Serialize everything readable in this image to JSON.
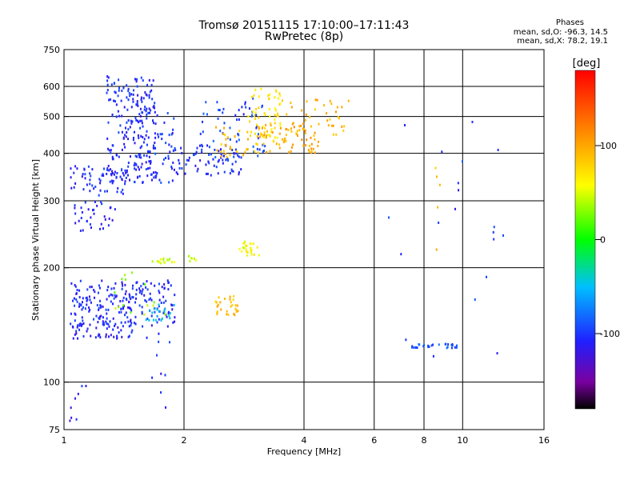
{
  "header": {
    "title": "Tromsø 20151115 17:10:00–17:11:43",
    "subtitle": "RwPretec (8p)",
    "phase_title": "Phases",
    "phase_line1": "mean, sd,O: -96.3, 14.5",
    "phase_line2": "mean, sd,X:  78.2, 19.1"
  },
  "colorbar": {
    "unit_label": "[deg]",
    "ticks": [
      {
        "label": "100",
        "value": 100
      },
      {
        "label": "0",
        "value": 0
      },
      {
        "label": "-100",
        "value": -100
      }
    ],
    "range": [
      -180,
      180
    ]
  },
  "chart_data": {
    "type": "scatter",
    "xlabel": "Frequency [MHz]",
    "ylabel": "Stationary phase Virtual Height [km]",
    "xscale": "log",
    "yscale": "log",
    "xlim": [
      1,
      16
    ],
    "ylim": [
      75,
      750
    ],
    "x_ticks": [
      {
        "label": "1",
        "value": 1
      },
      {
        "label": "2",
        "value": 2
      },
      {
        "label": "4",
        "value": 4
      },
      {
        "label": "6",
        "value": 6
      },
      {
        "label": "8",
        "value": 8
      },
      {
        "label": "10",
        "value": 10
      },
      {
        "label": "16",
        "value": 16
      }
    ],
    "x_grid": [
      2,
      4,
      6,
      8,
      10
    ],
    "y_ticks": [
      {
        "label": "75",
        "value": 75
      },
      {
        "label": "100",
        "value": 100
      },
      {
        "label": "200",
        "value": 200
      },
      {
        "label": "300",
        "value": 300
      },
      {
        "label": "400",
        "value": 400
      },
      {
        "label": "500",
        "value": 500
      },
      {
        "label": "600",
        "value": 600
      },
      {
        "label": "750",
        "value": 750
      }
    ],
    "y_grid": [
      100,
      200,
      300,
      400,
      500,
      600
    ],
    "grid": true,
    "color_variable": "phase [deg]",
    "clusters": [
      {
        "x": [
          1.04,
          1.45
        ],
        "y": [
          310,
          370
        ],
        "phase": -105,
        "n": 60
      },
      {
        "x": [
          1.28,
          1.7
        ],
        "y": [
          340,
          640
        ],
        "phase": -105,
        "n": 200
      },
      {
        "x": [
          1.5,
          1.9
        ],
        "y": [
          330,
          520
        ],
        "phase": -100,
        "n": 60
      },
      {
        "x": [
          1.85,
          2.8
        ],
        "y": [
          350,
          420
        ],
        "phase": -105,
        "n": 80
      },
      {
        "x": [
          2.2,
          3.2
        ],
        "y": [
          390,
          560
        ],
        "phase": -95,
        "n": 60
      },
      {
        "x": [
          2.4,
          3.2
        ],
        "y": [
          390,
          470
        ],
        "phase": 90,
        "n": 40
      },
      {
        "x": [
          2.9,
          3.5
        ],
        "y": [
          420,
          600
        ],
        "phase": 70,
        "n": 60
      },
      {
        "x": [
          3.1,
          4.4
        ],
        "y": [
          400,
          480
        ],
        "phase": 100,
        "n": 60
      },
      {
        "x": [
          3.5,
          5.2
        ],
        "y": [
          440,
          560
        ],
        "phase": 95,
        "n": 40
      },
      {
        "x": [
          1.02,
          1.5
        ],
        "y": [
          130,
          145
        ],
        "phase": -110,
        "n": 50
      },
      {
        "x": [
          1.04,
          1.9
        ],
        "y": [
          140,
          185
        ],
        "phase": -105,
        "n": 220
      },
      {
        "x": [
          1.3,
          1.8
        ],
        "y": [
          150,
          200
        ],
        "phase": 30,
        "n": 15
      },
      {
        "x": [
          1.6,
          1.9
        ],
        "y": [
          145,
          160
        ],
        "phase": -50,
        "n": 20
      },
      {
        "x": [
          1.06,
          1.35
        ],
        "y": [
          250,
          300
        ],
        "phase": -110,
        "n": 35
      },
      {
        "x": [
          1.65,
          1.9
        ],
        "y": [
          205,
          212
        ],
        "phase": 45,
        "n": 15
      },
      {
        "x": [
          2.4,
          2.75
        ],
        "y": [
          150,
          170
        ],
        "phase": 90,
        "n": 30
      },
      {
        "x": [
          2.75,
          3.1
        ],
        "y": [
          215,
          235
        ],
        "phase": 60,
        "n": 25
      },
      {
        "x": [
          2.05,
          2.15
        ],
        "y": [
          208,
          215
        ],
        "phase": 50,
        "n": 6
      },
      {
        "x": [
          7.4,
          9.7
        ],
        "y": [
          123,
          126
        ],
        "phase": -90,
        "n": 30
      },
      {
        "x": [
          6.1,
          13.5
        ],
        "y": [
          115,
          520
        ],
        "phase": -100,
        "n": 20
      },
      {
        "x": [
          8.5,
          8.8
        ],
        "y": [
          215,
          370
        ],
        "phase": 90,
        "n": 5
      },
      {
        "x": [
          1.0,
          1.15
        ],
        "y": [
          78,
          98
        ],
        "phase": -110,
        "n": 8
      },
      {
        "x": [
          1.6,
          1.9
        ],
        "y": [
          85,
          135
        ],
        "phase": -105,
        "n": 10
      }
    ]
  }
}
